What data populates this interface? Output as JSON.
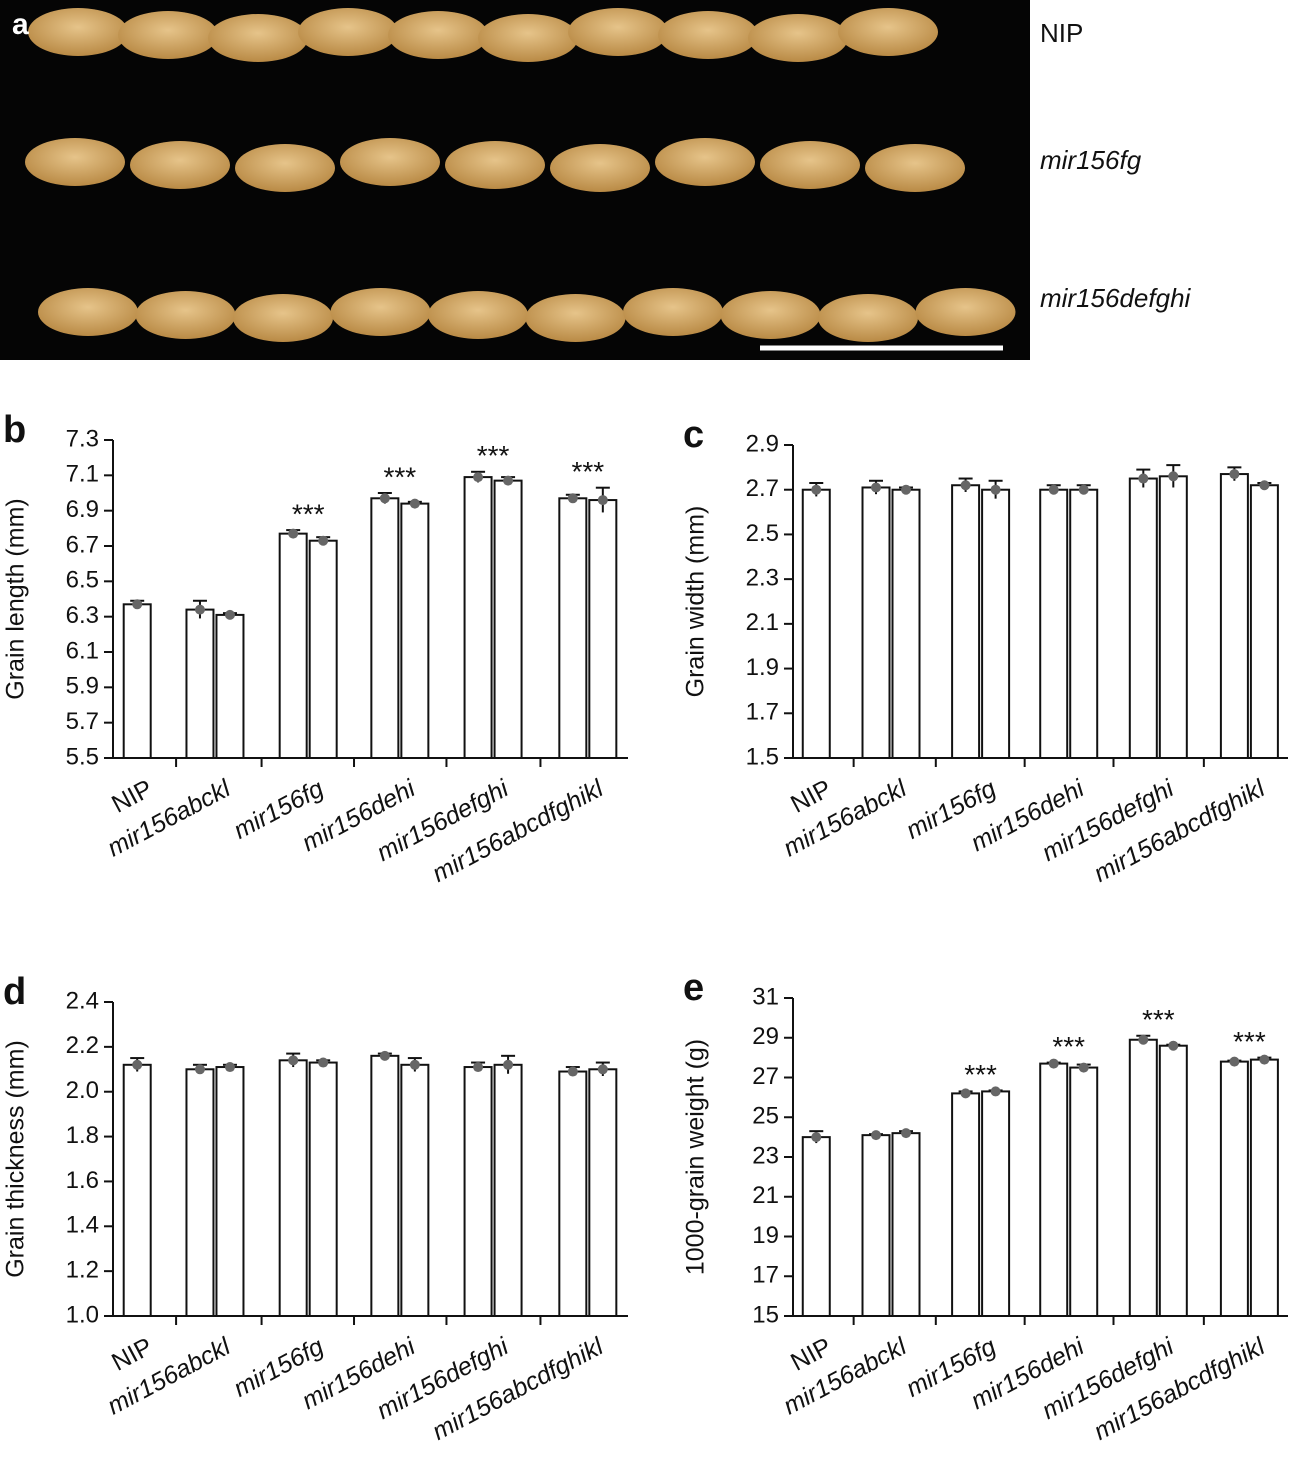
{
  "photo": {
    "panel_label": "a",
    "labels": [
      "NIP",
      "mir156fg",
      "mir156defghi"
    ]
  },
  "chart_data": [
    {
      "type": "bar",
      "panel_label": "b",
      "ylabel": "Grain length (mm)",
      "ylim": [
        5.5,
        7.3
      ],
      "yticks": [
        5.5,
        5.7,
        5.9,
        6.1,
        6.3,
        6.5,
        6.7,
        6.9,
        7.1,
        7.3
      ],
      "color": "#ffffff",
      "groups": [
        {
          "name": "NIP",
          "values": [
            6.37
          ],
          "errors": [
            0.02
          ]
        },
        {
          "name": "mir156abckl",
          "values": [
            6.34,
            6.31
          ],
          "errors": [
            0.05,
            0.01
          ]
        },
        {
          "name": "mir156fg",
          "values": [
            6.77,
            6.73
          ],
          "errors": [
            0.02,
            0.02
          ],
          "annotation": "***"
        },
        {
          "name": "mir156dehi",
          "values": [
            6.97,
            6.94
          ],
          "errors": [
            0.03,
            0.01
          ],
          "annotation": "***"
        },
        {
          "name": "mir156defghi",
          "values": [
            7.09,
            7.07
          ],
          "errors": [
            0.03,
            0.02
          ],
          "annotation": "***"
        },
        {
          "name": "mir156abcdfghikl",
          "values": [
            6.97,
            6.96
          ],
          "errors": [
            0.02,
            0.07
          ],
          "annotation": "***"
        }
      ]
    },
    {
      "type": "bar",
      "panel_label": "c",
      "ylabel": "Grain width (mm)",
      "ylim": [
        1.5,
        2.9
      ],
      "yticks": [
        1.5,
        1.7,
        1.9,
        2.1,
        2.3,
        2.5,
        2.7,
        2.9
      ],
      "color": "#ffffff",
      "groups": [
        {
          "name": "NIP",
          "values": [
            2.7
          ],
          "errors": [
            0.03
          ]
        },
        {
          "name": "mir156abckl",
          "values": [
            2.71,
            2.7
          ],
          "errors": [
            0.03,
            0.01
          ]
        },
        {
          "name": "mir156fg",
          "values": [
            2.72,
            2.7
          ],
          "errors": [
            0.03,
            0.04
          ]
        },
        {
          "name": "mir156dehi",
          "values": [
            2.7,
            2.7
          ],
          "errors": [
            0.02,
            0.02
          ]
        },
        {
          "name": "mir156defghi",
          "values": [
            2.75,
            2.76
          ],
          "errors": [
            0.04,
            0.05
          ]
        },
        {
          "name": "mir156abcdfghikl",
          "values": [
            2.77,
            2.72
          ],
          "errors": [
            0.03,
            0.01
          ]
        }
      ]
    },
    {
      "type": "bar",
      "panel_label": "d",
      "ylabel": "Grain thickness (mm)",
      "ylim": [
        1.0,
        2.4
      ],
      "yticks": [
        {
          "value": 1.0,
          "label": "1.0"
        },
        1.2,
        1.4,
        1.6,
        1.8,
        {
          "value": 2.0,
          "label": "2.0"
        },
        2.2,
        2.4
      ],
      "color": "#ffffff",
      "groups": [
        {
          "name": "NIP",
          "values": [
            2.12
          ],
          "errors": [
            0.03
          ]
        },
        {
          "name": "mir156abckl",
          "values": [
            2.1,
            2.11
          ],
          "errors": [
            0.02,
            0.01
          ]
        },
        {
          "name": "mir156fg",
          "values": [
            2.14,
            2.13
          ],
          "errors": [
            0.03,
            0.01
          ]
        },
        {
          "name": "mir156dehi",
          "values": [
            2.16,
            2.12
          ],
          "errors": [
            0.01,
            0.03
          ]
        },
        {
          "name": "mir156defghi",
          "values": [
            2.11,
            2.12
          ],
          "errors": [
            0.02,
            0.04
          ]
        },
        {
          "name": "mir156abcdfghikl",
          "values": [
            2.09,
            2.1
          ],
          "errors": [
            0.02,
            0.03
          ]
        }
      ]
    },
    {
      "type": "bar",
      "panel_label": "e",
      "ylabel": "1000-grain weight (g)",
      "ylim": [
        15,
        31
      ],
      "yticks": [
        15,
        17,
        19,
        21,
        23,
        25,
        27,
        29,
        31
      ],
      "color": "#ffffff",
      "groups": [
        {
          "name": "NIP",
          "values": [
            24.0
          ],
          "errors": [
            0.3
          ]
        },
        {
          "name": "mir156abckl",
          "values": [
            24.1,
            24.2
          ],
          "errors": [
            0.05,
            0.1
          ]
        },
        {
          "name": "mir156fg",
          "values": [
            26.2,
            26.3
          ],
          "errors": [
            0.1,
            0.05
          ],
          "annotation": "***"
        },
        {
          "name": "mir156dehi",
          "values": [
            27.7,
            27.5
          ],
          "errors": [
            0.05,
            0.15
          ],
          "annotation": "***"
        },
        {
          "name": "mir156defghi",
          "values": [
            28.9,
            28.6
          ],
          "errors": [
            0.2,
            0.05
          ],
          "annotation": "***"
        },
        {
          "name": "mir156abcdfghikl",
          "values": [
            27.8,
            27.9
          ],
          "errors": [
            0.05,
            0.1
          ],
          "annotation": "***"
        }
      ]
    }
  ]
}
